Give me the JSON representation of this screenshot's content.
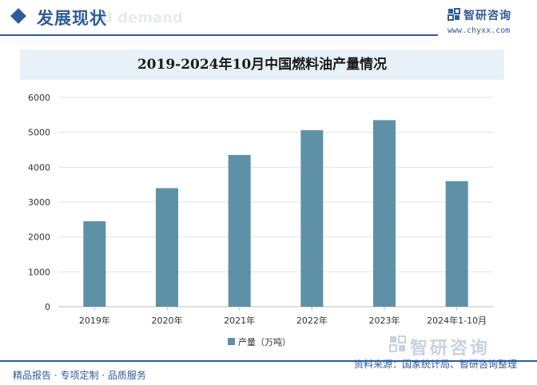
{
  "header": {
    "section_title": "发展现状",
    "ghost_text": "d demand",
    "brand_name": "智研咨询",
    "brand_url": "www.chyxx.com"
  },
  "footer": {
    "left_text": "精品报告 · 专项定制 · 品质服务",
    "source_text": "资料来源：国家统计局、智研咨询整理",
    "watermark_text": "智研咨询"
  },
  "colors": {
    "brand": "#2f5b99",
    "bar": "#5e91a7",
    "title_bar_bg": "#e9f1f8"
  },
  "chart_data": {
    "type": "bar",
    "title": "2019-2024年10月中国燃料油产量情况",
    "categories": [
      "2019年",
      "2020年",
      "2021年",
      "2022年",
      "2023年",
      "2024年1-10月"
    ],
    "series": [
      {
        "name": "产量（万吨）",
        "values": [
          2450,
          3400,
          4350,
          5060,
          5350,
          3600
        ]
      }
    ],
    "ylim": [
      0,
      6000
    ],
    "yticks": [
      0,
      1000,
      2000,
      3000,
      4000,
      5000,
      6000
    ],
    "grid": true,
    "legend_position": "bottom"
  }
}
